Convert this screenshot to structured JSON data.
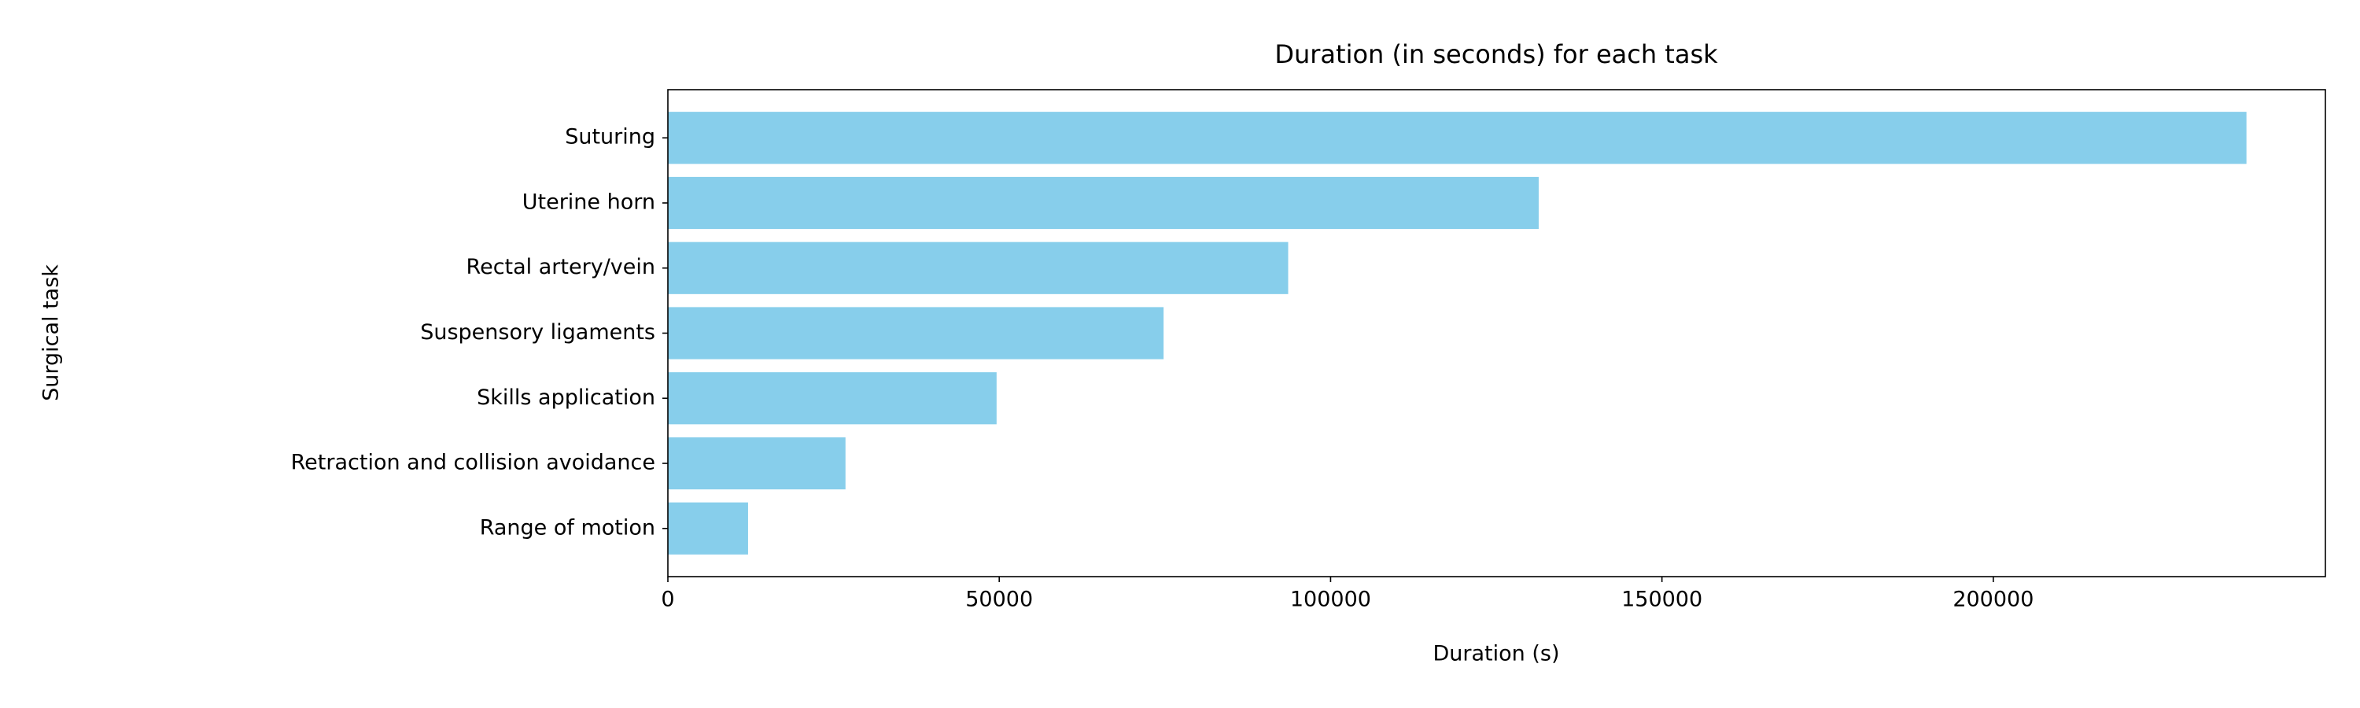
{
  "chart_data": {
    "type": "bar",
    "orientation": "horizontal",
    "title": "Duration (in seconds) for each task",
    "xlabel": "Duration (s)",
    "ylabel": "Surgical task",
    "categories": [
      "Suturing",
      "Uterine horn",
      "Rectal artery/vein",
      "Suspensory ligaments",
      "Skills application",
      "Retraction and collision avoidance",
      "Range of motion"
    ],
    "values": [
      238200,
      131400,
      93600,
      74800,
      49600,
      26800,
      12100
    ],
    "color": "#87ceeb",
    "xlim": [
      0,
      250110
    ],
    "xticks": [
      0,
      50000,
      100000,
      150000,
      200000
    ],
    "grid": false
  }
}
